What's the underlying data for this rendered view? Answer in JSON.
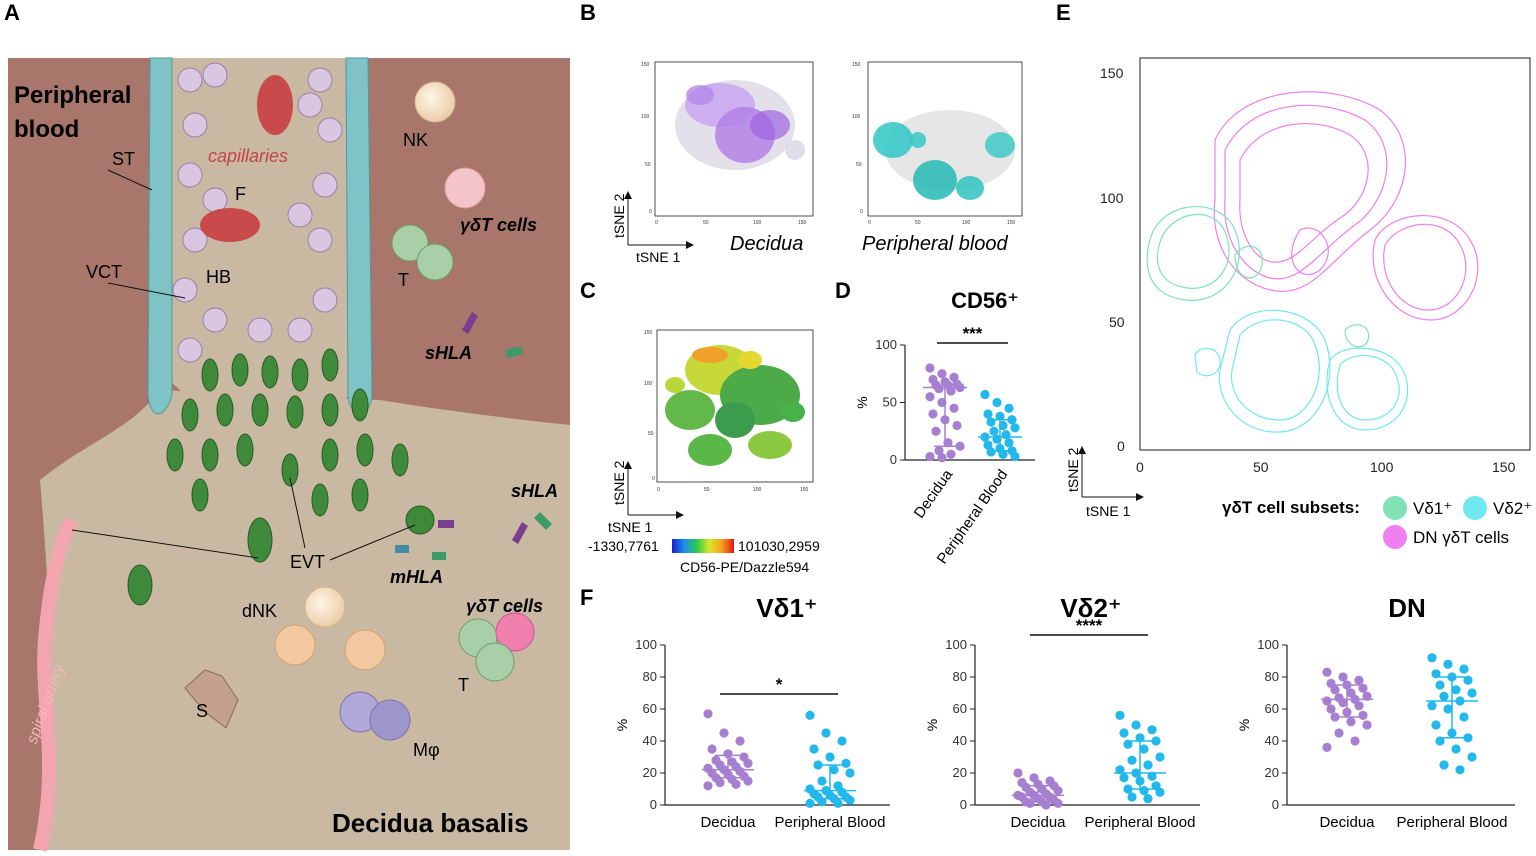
{
  "panel_letters": {
    "a": "A",
    "b": "B",
    "c": "C",
    "d": "D",
    "e": "E",
    "f": "F"
  },
  "colors": {
    "background_tissue": "#a8766a",
    "decidua": "#c9b9a3",
    "vessel": "#7fc3c6",
    "vct": "#d9c6e0",
    "evt": "#3f8a3a",
    "decidua_purple": "#a77fd1",
    "pb_blue": "#22b8ec",
    "vd1_green": "#7fe3b6",
    "vd2_cyan": "#6fe8ee",
    "dn_pink": "#f07ff0"
  },
  "panel_a": {
    "peripheral_blood": "Peripheral\nblood",
    "capillaries": "capillaries",
    "decidua_basalis": "Decidua basalis",
    "spiral_artery": "spiral artery",
    "labels": {
      "st": "ST",
      "vct": "VCT",
      "f": "F",
      "hb": "HB",
      "nk": "NK",
      "gdt_top": "γδT cells",
      "t_top": "T",
      "shla_top": "sHLA",
      "shla_right": "sHLA",
      "evt": "EVT",
      "mhla": "mHLA",
      "dnk": "dNK",
      "gdt_bottom": "γδT cells",
      "t_bottom": "T",
      "s": "S",
      "mphi": "Mφ"
    }
  },
  "panel_b": {
    "left_caption": "Decidua",
    "right_caption": "Peripheral blood",
    "x_axis": "tSNE 1",
    "y_axis": "tSNE 2",
    "ticks": [
      "0",
      "50",
      "100",
      "150"
    ]
  },
  "panel_c": {
    "x_axis": "tSNE 1",
    "y_axis": "tSNE 2",
    "scale_min": "-1330,7761",
    "scale_max": "101030,2959",
    "marker": "CD56-PE/Dazzle594",
    "ticks": [
      "0",
      "50",
      "100",
      "150"
    ]
  },
  "panel_e": {
    "x_axis": "tSNE 1",
    "y_axis": "tSNE 2",
    "ticks": [
      "0",
      "50",
      "100",
      "150"
    ],
    "legend_title": "γδT cell subsets:",
    "legend": [
      {
        "label": "Vδ1⁺",
        "color": "#7fe3b6"
      },
      {
        "label": "Vδ2⁺",
        "color": "#6fe8ee"
      },
      {
        "label": "DN γδT cells",
        "color": "#f07ff0"
      }
    ]
  },
  "chart_data": [
    {
      "type": "scatter",
      "panel": "D",
      "title": "CD56⁺",
      "ylabel": "%",
      "ylim": [
        0,
        100
      ],
      "yticks": [
        0,
        50,
        100
      ],
      "categories": [
        "Decidua",
        "Peripheral Blood"
      ],
      "significance": "***",
      "series": [
        {
          "name": "Decidua",
          "color": "#a77fd1",
          "median": 63,
          "q1": 12,
          "q3": 65,
          "values": [
            80,
            75,
            72,
            70,
            68,
            66,
            65,
            65,
            63,
            62,
            60,
            55,
            50,
            45,
            40,
            35,
            30,
            25,
            15,
            12,
            8,
            5,
            3,
            2
          ]
        },
        {
          "name": "Peripheral Blood",
          "color": "#22b8ec",
          "median": 20,
          "q1": 8,
          "q3": 35,
          "values": [
            57,
            50,
            45,
            40,
            38,
            35,
            33,
            30,
            28,
            25,
            22,
            20,
            18,
            15,
            13,
            10,
            8,
            7,
            5,
            3
          ]
        }
      ]
    },
    {
      "type": "scatter",
      "panel": "F",
      "title": "Vδ1⁺",
      "ylabel": "%",
      "ylim": [
        0,
        100
      ],
      "yticks": [
        0,
        20,
        40,
        60,
        80,
        100
      ],
      "categories": [
        "Decidua",
        "Peripheral Blood"
      ],
      "significance": "*",
      "series": [
        {
          "name": "Decidua",
          "color": "#a77fd1",
          "median": 22,
          "q1": 17,
          "q3": 31,
          "values": [
            57,
            45,
            40,
            35,
            32,
            30,
            28,
            27,
            26,
            25,
            24,
            23,
            22,
            21,
            20,
            19,
            18,
            17,
            16,
            15,
            14,
            13,
            12
          ]
        },
        {
          "name": "Peripheral Blood",
          "color": "#22b8ec",
          "median": 9,
          "q1": 4,
          "q3": 25,
          "values": [
            56,
            45,
            40,
            35,
            30,
            26,
            25,
            22,
            20,
            15,
            12,
            10,
            9,
            8,
            7,
            6,
            5,
            5,
            4,
            3,
            2,
            1,
            1
          ]
        }
      ]
    },
    {
      "type": "scatter",
      "panel": "F",
      "title": "Vδ2⁺",
      "ylabel": "%",
      "ylim": [
        0,
        100
      ],
      "yticks": [
        0,
        20,
        40,
        60,
        80,
        100
      ],
      "categories": [
        "Decidua",
        "Peripheral Blood"
      ],
      "significance": "****",
      "series": [
        {
          "name": "Decidua",
          "color": "#a77fd1",
          "median": 6,
          "q1": 2,
          "q3": 12,
          "values": [
            20,
            17,
            15,
            14,
            13,
            12,
            11,
            10,
            9,
            8,
            7,
            6,
            6,
            5,
            5,
            4,
            3,
            2,
            2,
            1,
            1,
            0
          ]
        },
        {
          "name": "Peripheral Blood",
          "color": "#22b8ec",
          "median": 20,
          "q1": 10,
          "q3": 40,
          "values": [
            56,
            50,
            47,
            45,
            42,
            40,
            38,
            35,
            30,
            28,
            25,
            22,
            20,
            18,
            17,
            15,
            12,
            10,
            9,
            8,
            5,
            4
          ]
        }
      ]
    },
    {
      "type": "scatter",
      "panel": "F",
      "title": "DN",
      "ylabel": "%",
      "ylim": [
        0,
        100
      ],
      "yticks": [
        0,
        20,
        40,
        60,
        80,
        100
      ],
      "categories": [
        "Decidua",
        "Peripheral Blood"
      ],
      "significance": "",
      "series": [
        {
          "name": "Decidua",
          "color": "#a77fd1",
          "median": 66,
          "q1": 55,
          "q3": 75,
          "values": [
            83,
            80,
            78,
            76,
            75,
            73,
            72,
            70,
            68,
            67,
            66,
            65,
            64,
            62,
            60,
            58,
            56,
            55,
            52,
            50,
            45,
            40,
            36
          ]
        },
        {
          "name": "Peripheral Blood",
          "color": "#22b8ec",
          "median": 65,
          "q1": 42,
          "q3": 80,
          "values": [
            92,
            88,
            85,
            82,
            80,
            78,
            75,
            72,
            70,
            68,
            65,
            62,
            60,
            55,
            50,
            45,
            42,
            40,
            35,
            30,
            25,
            22
          ]
        }
      ]
    }
  ]
}
